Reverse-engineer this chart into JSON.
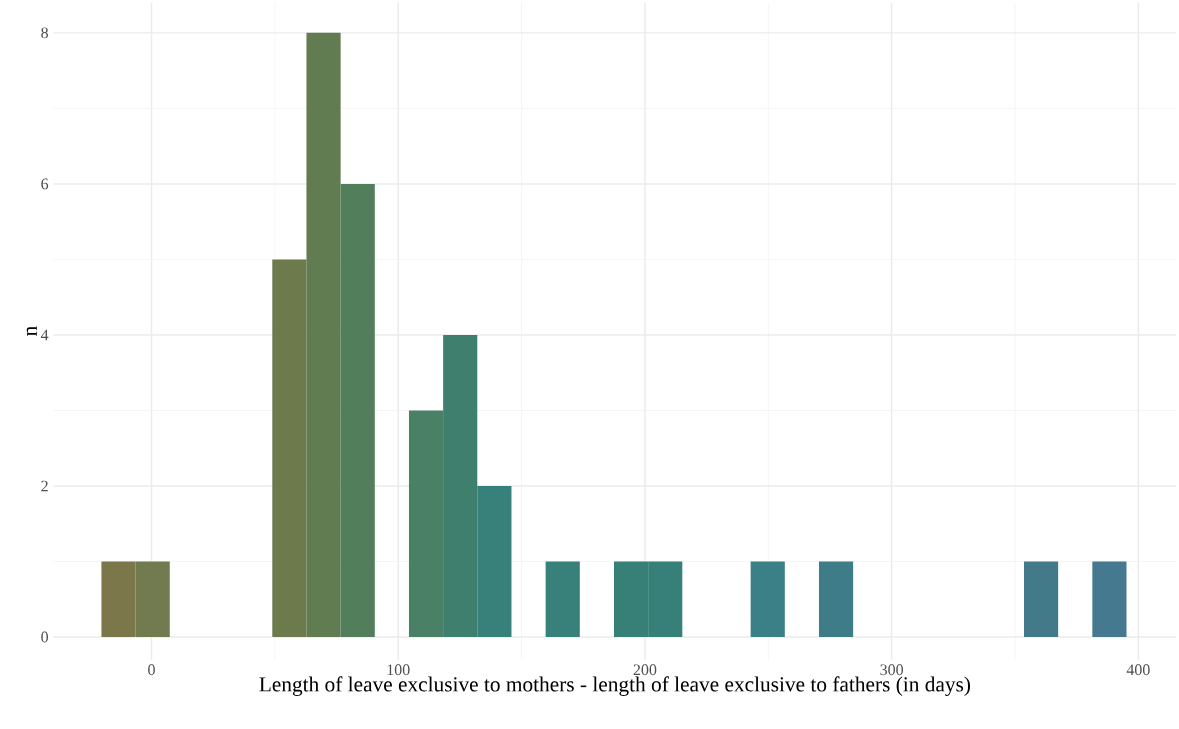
{
  "chart_data": {
    "type": "histogram",
    "xlabel": "Length of leave exclusive to mothers - length of leave exclusive to fathers (in days)",
    "ylabel": "n",
    "bins": [
      -20.3,
      -6.45,
      7.4,
      21.25,
      35.1,
      48.95,
      62.8,
      76.65,
      90.5,
      104.35,
      118.2,
      132.05,
      145.9,
      159.75,
      173.6,
      187.45,
      201.3,
      215.15,
      229.0,
      242.85,
      256.7,
      270.55,
      284.4,
      298.25,
      312.1,
      325.95,
      339.8,
      353.65,
      367.5,
      381.35,
      395.2
    ],
    "values": [
      1,
      1,
      0,
      0,
      0,
      5,
      8,
      6,
      0,
      3,
      4,
      2,
      0,
      1,
      0,
      1,
      1,
      0,
      0,
      1,
      0,
      1,
      0,
      0,
      0,
      0,
      0,
      1,
      0,
      1
    ],
    "colors": [
      "#7b774b",
      "#727b4f",
      "#707a4e",
      "#707a4e",
      "#707a4e",
      "#6d7a4c",
      "#627c52",
      "#537e5c",
      "#4e7f62",
      "#4a8066",
      "#3f7f6d",
      "#37817a",
      "#37817a",
      "#37817a",
      "#378078",
      "#378078",
      "#37807a",
      "#38807e",
      "#398082",
      "#3a8086",
      "#3c7e87",
      "#3e7d88",
      "#407c88",
      "#417c89",
      "#417b89",
      "#427b89",
      "#427a89",
      "#437a89",
      "#43798c",
      "#447990"
    ],
    "xlim": [
      -39.8,
      415.4
    ],
    "ylim": [
      -0.3,
      8.4
    ],
    "xticks": [
      0,
      100,
      200,
      300,
      400
    ],
    "yticks": [
      0,
      2,
      4,
      6,
      8
    ],
    "grid": true
  }
}
